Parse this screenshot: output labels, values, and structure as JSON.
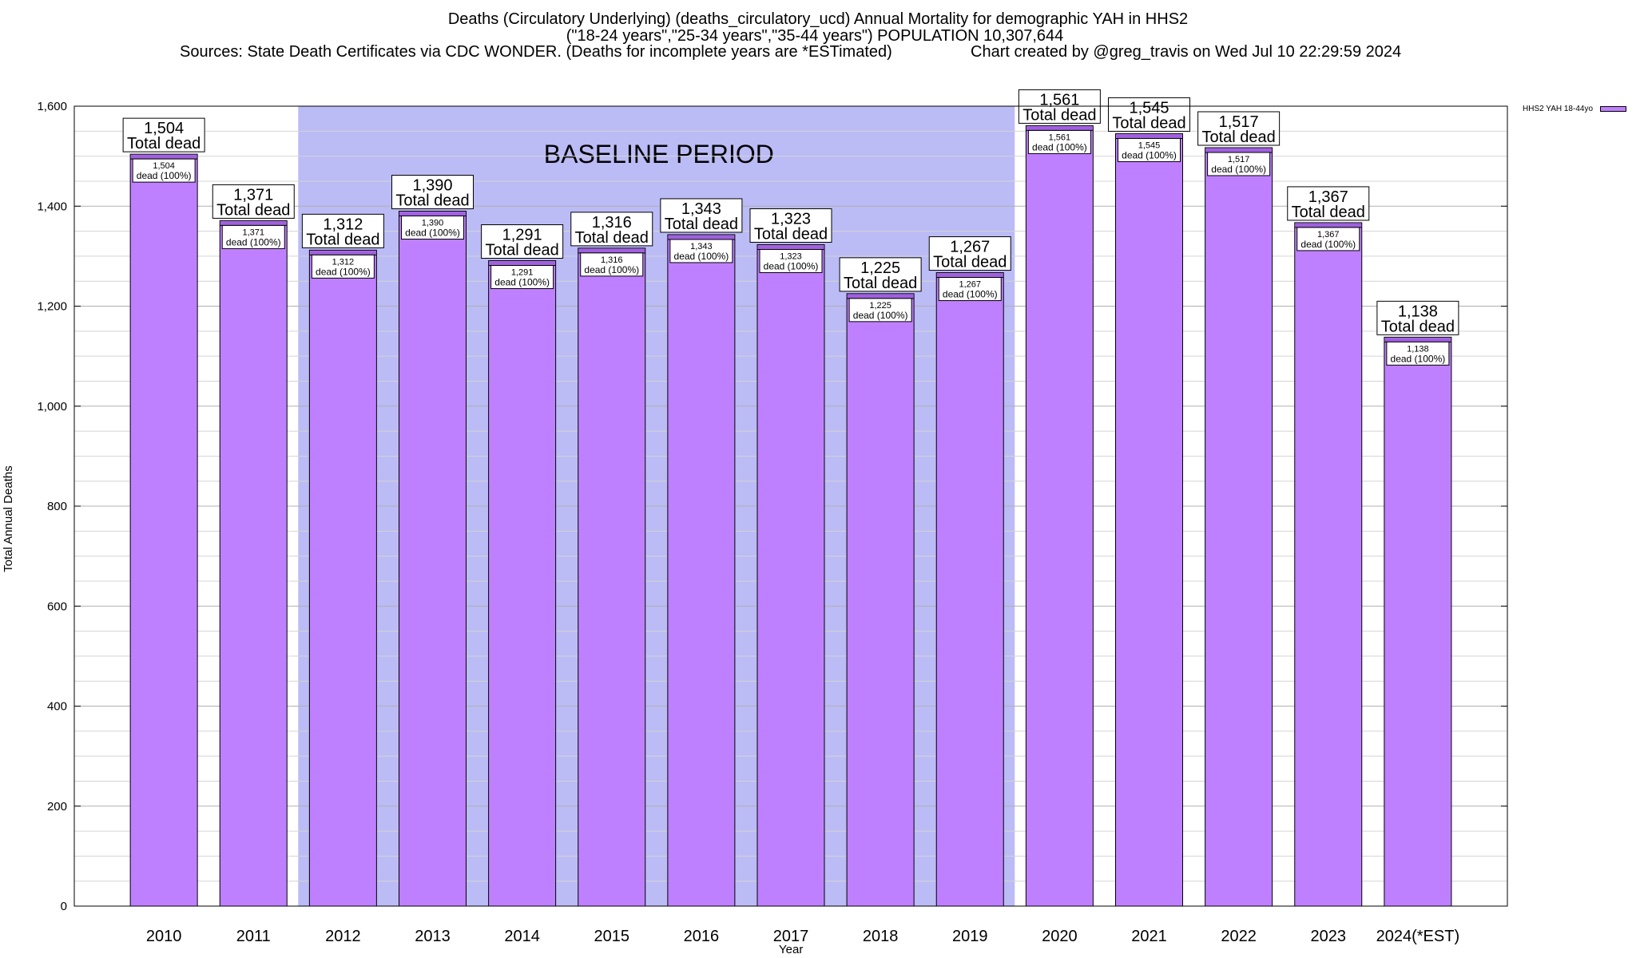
{
  "chart_data": {
    "type": "bar",
    "title": "Deaths (Circulatory Underlying) (deaths_circulatory_ucd) Annual Mortality for demographic YAH in HHS2",
    "title_line2": "(\"18-24 years\",\"25-34 years\",\"35-44 years\") POPULATION 10,307,644",
    "sources": "Sources: State Death Certificates via CDC WONDER. (Deaths for incomplete years are *ESTimated)",
    "credit": "Chart created by @greg_travis on Wed Jul 10 22:29:59 2024",
    "xlabel": "Year",
    "ylabel": "Total Annual Deaths",
    "ylim": [
      0,
      1600
    ],
    "yticks": [
      0,
      200,
      400,
      600,
      800,
      1000,
      1200,
      1400,
      1600
    ],
    "ytick_labels": [
      "0",
      "200",
      "400",
      "600",
      "800",
      "1,000",
      "1,200",
      "1,400",
      "1,600"
    ],
    "grid": true,
    "legend_position": "top-right",
    "legend_label": "HHS2 YAH 18-44yo",
    "bar_color": "#bf80ff",
    "cap_color": "#a060e0",
    "baseline_color": "#bbbbf6",
    "baseline_label": "BASELINE PERIOD",
    "baseline_range": [
      "2012",
      "2019"
    ],
    "categories": [
      "2010",
      "2011",
      "2012",
      "2013",
      "2014",
      "2015",
      "2016",
      "2017",
      "2018",
      "2019",
      "2020",
      "2021",
      "2022",
      "2023",
      "2024(*EST)"
    ],
    "values": [
      1504,
      1371,
      1312,
      1390,
      1291,
      1316,
      1343,
      1323,
      1225,
      1267,
      1561,
      1545,
      1517,
      1367,
      1138
    ],
    "top_labels": [
      "1,504",
      "1,371",
      "1,312",
      "1,390",
      "1,291",
      "1,316",
      "1,343",
      "1,323",
      "1,225",
      "1,267",
      "1,561",
      "1,545",
      "1,517",
      "1,367",
      "1,138"
    ],
    "top_label_suffix": "Total dead",
    "inner_labels": [
      "1,504",
      "1,371",
      "1,312",
      "1,390",
      "1,291",
      "1,316",
      "1,343",
      "1,323",
      "1,225",
      "1,267",
      "1,561",
      "1,545",
      "1,517",
      "1,367",
      "1,138"
    ],
    "inner_label_suffix": "dead (100%)"
  }
}
